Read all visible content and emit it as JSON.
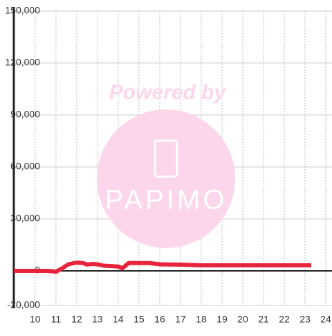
{
  "chart_data": {
    "type": "line",
    "watermark": {
      "caption": "Powered by",
      "brand": "PAPIMO"
    },
    "x": [
      8.97,
      10,
      10.6,
      10.9,
      11,
      11.3,
      11.6,
      12,
      12.3,
      12.5,
      12.8,
      13,
      13.3,
      13.6,
      14,
      14.2,
      14.5,
      14.8,
      15,
      15.5,
      16,
      16.5,
      17,
      17.5,
      18,
      19,
      20,
      21,
      22,
      23,
      23.3
    ],
    "series": [
      {
        "name": "value",
        "color": "#e8243c",
        "values": [
          0,
          0,
          0,
          -300,
          -500,
          1500,
          3800,
          4800,
          4500,
          3700,
          4000,
          3800,
          3000,
          2800,
          2500,
          1500,
          4500,
          4600,
          4500,
          4500,
          3800,
          3700,
          3600,
          3400,
          3200,
          3200,
          3200,
          3200,
          3200,
          3200,
          3200
        ]
      }
    ],
    "xlim": [
      8.97,
      24.3
    ],
    "xticks": [
      10,
      11,
      12,
      13,
      14,
      15,
      16,
      17,
      18,
      19,
      20,
      21,
      22,
      23,
      24
    ],
    "ylim": [
      -20000,
      150000
    ],
    "yticks": [
      {
        "value": -20000,
        "label": "-20,000"
      },
      0,
      {
        "value": 30000,
        "label": "30,000"
      },
      {
        "value": 60000,
        "label": "60,000"
      },
      {
        "value": 90000,
        "label": "90,000"
      },
      {
        "value": 120000,
        "label": "120,000"
      },
      {
        "value": 150000,
        "label": "150,000"
      }
    ],
    "grid": true
  }
}
